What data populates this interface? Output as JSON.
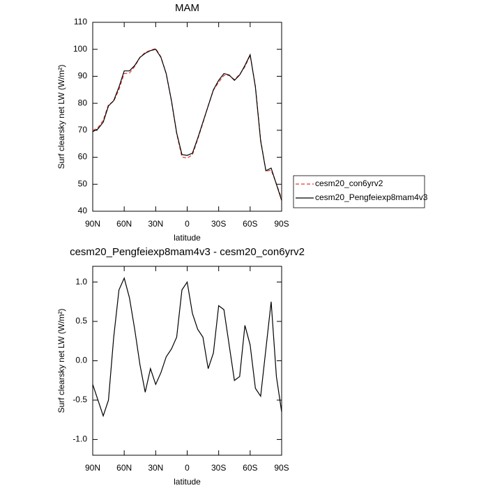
{
  "chart_data": [
    {
      "type": "line",
      "title": "MAM",
      "x_label": "latitude",
      "y_label": "Surf clearsky net LW (W/m²)",
      "x": [
        90,
        85,
        80,
        75,
        70,
        65,
        60,
        55,
        50,
        45,
        40,
        35,
        30,
        25,
        20,
        15,
        10,
        5,
        0,
        -5,
        -10,
        -15,
        -20,
        -25,
        -30,
        -35,
        -40,
        -45,
        -50,
        -55,
        -60,
        -65,
        -70,
        -75,
        -80,
        -85,
        -90
      ],
      "series": [
        {
          "name": "cesm20_con6yrv2",
          "color": "#e8382e",
          "style": "dashed",
          "values": [
            69.9,
            71.0,
            73.7,
            79.5,
            80.7,
            85.1,
            91.0,
            91.2,
            93.6,
            97.0,
            98.9,
            99.6,
            100.3,
            97.2,
            91.0,
            80.9,
            68.7,
            60.1,
            59.7,
            60.9,
            66.6,
            72.7,
            79.1,
            84.9,
            87.8,
            90.3,
            90.3,
            88.8,
            90.7,
            93.5,
            97.8,
            86.3,
            66.5,
            54.8,
            55.2,
            50.2,
            44.6
          ]
        },
        {
          "name": "cesm20_Pengfeiexp8mam4v3",
          "color": "#000000",
          "style": "solid",
          "values": [
            69.5,
            70.5,
            73,
            79,
            81,
            86,
            92,
            92,
            94,
            97,
            98.5,
            99.5,
            100,
            97,
            91,
            81,
            69,
            61,
            60.7,
            61.5,
            67,
            73,
            79,
            85,
            88.5,
            91,
            90.5,
            88.5,
            90.5,
            94,
            98,
            86,
            66,
            55,
            56,
            50,
            44
          ]
        }
      ],
      "xlim": [
        90,
        -90
      ],
      "xticks": [
        {
          "value": 90,
          "label": "90N"
        },
        {
          "value": 60,
          "label": "60N"
        },
        {
          "value": 30,
          "label": "30N"
        },
        0,
        {
          "value": -30,
          "label": "30S"
        },
        {
          "value": -60,
          "label": "60S"
        },
        {
          "value": -90,
          "label": "90S"
        }
      ],
      "ylim": [
        40,
        110
      ],
      "yticks": [
        40,
        50,
        60,
        70,
        80,
        90,
        100,
        110
      ],
      "legend": "right"
    },
    {
      "type": "line",
      "title": "cesm20_Pengfeiexp8mam4v3 - cesm20_con6yrv2",
      "x_label": "latitude",
      "y_label": "Surf clearsky net LW (W/m²)",
      "x": [
        90,
        85,
        80,
        75,
        70,
        65,
        60,
        55,
        50,
        45,
        40,
        35,
        30,
        25,
        20,
        15,
        10,
        5,
        0,
        -5,
        -10,
        -15,
        -20,
        -25,
        -30,
        -35,
        -40,
        -45,
        -50,
        -55,
        -60,
        -65,
        -70,
        -75,
        -80,
        -85,
        -90
      ],
      "color": "#000000",
      "values": [
        -0.3,
        -0.5,
        -0.7,
        -0.5,
        0.3,
        0.9,
        1.05,
        0.8,
        0.4,
        -0.05,
        -0.4,
        -0.1,
        -0.3,
        -0.15,
        0.05,
        0.15,
        0.3,
        0.9,
        1.0,
        0.6,
        0.4,
        0.3,
        -0.1,
        0.1,
        0.7,
        0.65,
        0.2,
        -0.25,
        -0.2,
        0.45,
        0.2,
        -0.35,
        -0.45,
        0.15,
        0.75,
        -0.2,
        -0.65
      ],
      "xlim": [
        90,
        -90
      ],
      "xticks": [
        {
          "value": 90,
          "label": "90N"
        },
        {
          "value": 60,
          "label": "60N"
        },
        {
          "value": 30,
          "label": "30N"
        },
        0,
        {
          "value": -30,
          "label": "30S"
        },
        {
          "value": -60,
          "label": "60S"
        },
        {
          "value": -90,
          "label": "90S"
        }
      ],
      "ylim": [
        -1.2,
        1.2
      ],
      "yticks": [
        {
          "value": -1,
          "label": "-1.0"
        },
        -0.5,
        {
          "value": 0,
          "label": "0.0"
        },
        0.5,
        {
          "value": 1,
          "label": "1.0"
        }
      ]
    }
  ]
}
